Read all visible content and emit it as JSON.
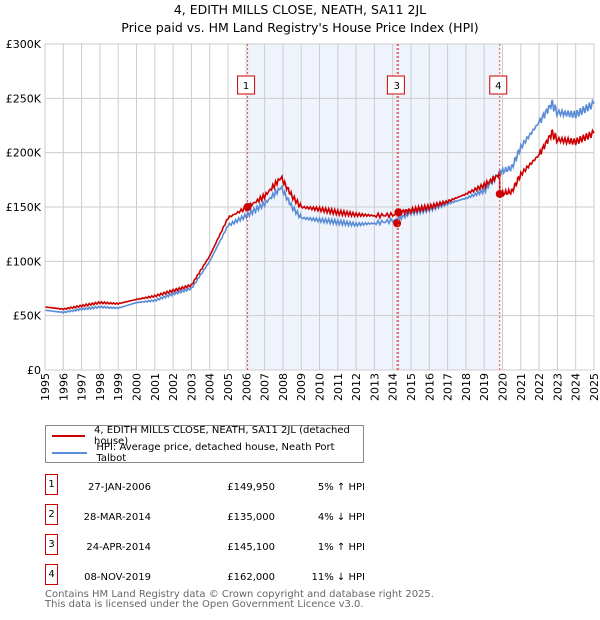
{
  "title": "4, EDITH MILLS CLOSE, NEATH, SA11 2JL",
  "subtitle": "Price paid vs. HM Land Registry's House Price Index (HPI)",
  "chart_data": {
    "type": "line",
    "ylim": [
      0,
      300000
    ],
    "xlim": [
      1995,
      2025
    ],
    "yticks": [
      {
        "v": 0,
        "label": "£0"
      },
      {
        "v": 50000,
        "label": "£50K"
      },
      {
        "v": 100000,
        "label": "£100K"
      },
      {
        "v": 150000,
        "label": "£150K"
      },
      {
        "v": 200000,
        "label": "£200K"
      },
      {
        "v": 250000,
        "label": "£250K"
      },
      {
        "v": 300000,
        "label": "£300K"
      }
    ],
    "xticks": [
      "1995",
      "1996",
      "1997",
      "1998",
      "1999",
      "2000",
      "2001",
      "2002",
      "2003",
      "2004",
      "2005",
      "2006",
      "2007",
      "2008",
      "2009",
      "2010",
      "2011",
      "2012",
      "2013",
      "2014",
      "2015",
      "2016",
      "2017",
      "2018",
      "2019",
      "2020",
      "2021",
      "2022",
      "2023",
      "2024",
      "2025"
    ],
    "series": [
      {
        "name": "4, EDITH MILLS CLOSE, NEATH, SA11 2JL (detached house)",
        "color": "#cc0000",
        "x": [
          1995,
          1996,
          1997,
          1998,
          1999,
          2000,
          2001,
          2002,
          2003,
          2004,
          2005,
          2006.07,
          2007,
          2007.9,
          2008.5,
          2009,
          2010,
          2011,
          2012,
          2013,
          2014.2,
          2014.3,
          2015,
          2016,
          2017,
          2018,
          2019,
          2019.84,
          2019.85,
          2020.5,
          2021,
          2022,
          2022.7,
          2023,
          2024,
          2025
        ],
        "y": [
          58000,
          56000,
          59000,
          62000,
          61000,
          65000,
          68000,
          73000,
          78000,
          105000,
          140000,
          149950,
          160000,
          177000,
          160000,
          150000,
          148000,
          145000,
          143000,
          142000,
          143000,
          145100,
          147000,
          150000,
          155000,
          162000,
          170000,
          180000,
          162000,
          164000,
          180000,
          198000,
          218000,
          212000,
          210000,
          218000
        ]
      },
      {
        "name": "HPI: Average price, detached house, Neath Port Talbot",
        "color": "#5b8dd6",
        "x": [
          1995,
          1996,
          1997,
          1998,
          1999,
          2000,
          2001,
          2002,
          2003,
          2004,
          2005,
          2006,
          2007,
          2007.9,
          2008.5,
          2009,
          2010,
          2011,
          2012,
          2013,
          2014.2,
          2015,
          2016,
          2017,
          2018,
          2019,
          2019.85,
          2020.5,
          2021,
          2022,
          2022.7,
          2023,
          2024,
          2025
        ],
        "y": [
          55000,
          53000,
          56000,
          58000,
          57000,
          62000,
          64000,
          70000,
          75000,
          100000,
          133000,
          142000,
          153000,
          168000,
          150000,
          140000,
          138000,
          136000,
          134000,
          135000,
          138000,
          145000,
          148000,
          153000,
          158000,
          165000,
          182000,
          186000,
          205000,
          228000,
          245000,
          237000,
          235000,
          245000
        ]
      }
    ],
    "sales": [
      {
        "n": "1",
        "x": 2006.07,
        "y": 149950
      },
      {
        "n": "2",
        "x": 2014.24,
        "y": 135000
      },
      {
        "n": "3",
        "x": 2014.31,
        "y": 145100
      },
      {
        "n": "4",
        "x": 2019.85,
        "y": 162000
      }
    ],
    "shade": [
      2006.07,
      2019.85
    ]
  },
  "legend": [
    "4, EDITH MILLS CLOSE, NEATH, SA11 2JL (detached house)",
    "HPI: Average price, detached house, Neath Port Talbot"
  ],
  "sales_table": [
    {
      "n": "1",
      "date": "27-JAN-2006",
      "price": "£149,950",
      "hpi": "5% ↑ HPI"
    },
    {
      "n": "2",
      "date": "28-MAR-2014",
      "price": "£135,000",
      "hpi": "4% ↓ HPI"
    },
    {
      "n": "3",
      "date": "24-APR-2014",
      "price": "£145,100",
      "hpi": "1% ↑ HPI"
    },
    {
      "n": "4",
      "date": "08-NOV-2019",
      "price": "£162,000",
      "hpi": "11% ↓ HPI"
    }
  ],
  "footer": [
    "Contains HM Land Registry data © Crown copyright and database right 2025.",
    "This data is licensed under the Open Government Licence v3.0."
  ]
}
